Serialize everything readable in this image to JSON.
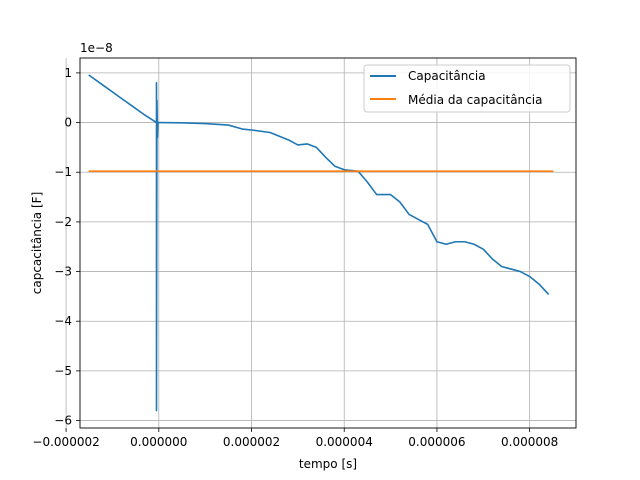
{
  "chart_data": {
    "type": "line",
    "title": "",
    "xlabel": "tempo [s]",
    "ylabel": "capcacitância [F]",
    "y_offset_label": "1e−8",
    "xlim": [
      -1.7e-06,
      9e-06
    ],
    "ylim": [
      -6.15e-08,
      1.3e-08
    ],
    "grid": true,
    "legend_position": "top-right",
    "x_ticks": [
      -2e-06,
      0.0,
      2e-06,
      4e-06,
      6e-06,
      8e-06
    ],
    "x_tick_labels": [
      "−0.000002",
      "0.000000",
      "0.000002",
      "0.000004",
      "0.000006",
      "0.000008"
    ],
    "y_ticks": [
      1e-08,
      0,
      -1e-08,
      -2e-08,
      -3e-08,
      -4e-08,
      -5e-08,
      -6e-08
    ],
    "y_tick_labels": [
      "1",
      "0",
      "−1",
      "−2",
      "−3",
      "−4",
      "−5",
      "−6"
    ],
    "series": [
      {
        "name": "Capacitância",
        "color": "#1f77b4",
        "x": [
          -1.5e-06,
          -1.2e-06,
          -9e-07,
          -6e-07,
          -3e-07,
          -5e-08,
          -5e-08,
          -5e-08,
          -4e-08,
          -3e-08,
          -2e-08,
          0.0,
          5e-07,
          1e-06,
          1.5e-06,
          1.8e-06,
          2e-06,
          2.4e-06,
          2.8e-06,
          3e-06,
          3.2e-06,
          3.4e-06,
          3.6e-06,
          3.8e-06,
          4e-06,
          4.3e-06,
          4.5e-06,
          4.7e-06,
          5e-06,
          5.2e-06,
          5.4e-06,
          5.6e-06,
          5.8e-06,
          6e-06,
          6.2e-06,
          6.4e-06,
          6.6e-06,
          6.8e-06,
          7e-06,
          7.2e-06,
          7.4e-06,
          7.6e-06,
          7.8e-06,
          8e-06,
          8.2e-06,
          8.4e-06
        ],
        "y": [
          9.5e-09,
          7.5e-09,
          5.5e-09,
          3.5e-09,
          1.5e-09,
          0.0,
          8e-09,
          -5.8e-08,
          4.5e-09,
          -3e-09,
          0.0,
          0.0,
          -5e-11,
          -2e-10,
          -5e-10,
          -1.3e-09,
          -1.5e-09,
          -2e-09,
          -3.5e-09,
          -4.5e-09,
          -4.3e-09,
          -5e-09,
          -7e-09,
          -8.8e-09,
          -9.5e-09,
          -9.8e-09,
          -1.2e-08,
          -1.45e-08,
          -1.45e-08,
          -1.6e-08,
          -1.85e-08,
          -1.95e-08,
          -2.05e-08,
          -2.4e-08,
          -2.45e-08,
          -2.4e-08,
          -2.4e-08,
          -2.45e-08,
          -2.55e-08,
          -2.75e-08,
          -2.9e-08,
          -2.95e-08,
          -3e-08,
          -3.1e-08,
          -3.25e-08,
          -3.45e-08
        ]
      },
      {
        "name": "Média da capacitância",
        "color": "#ff7f0e",
        "x": [
          -1.5e-06,
          8.5e-06
        ],
        "y": [
          -9.8e-09,
          -9.8e-09
        ]
      }
    ]
  }
}
